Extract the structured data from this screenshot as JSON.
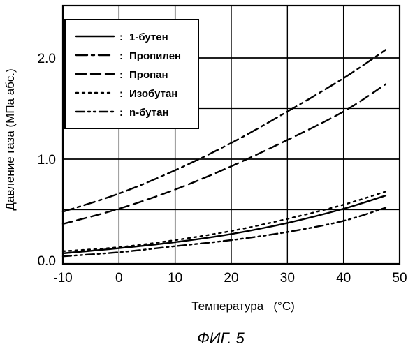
{
  "chart_data": {
    "type": "line",
    "xlabel": "Температура   (°C)",
    "ylabel": "Давление газа (МПа абс.)",
    "caption": "ФИГ. 5",
    "xlim": [
      -10,
      50
    ],
    "ylim": [
      0,
      2.4
    ],
    "x_ticks": [
      "-10",
      "0",
      "10",
      "20",
      "30",
      "40",
      "50"
    ],
    "y_ticks": [
      "0.0",
      "1.0",
      "2.0"
    ],
    "grid": true,
    "legend_position": "top-left",
    "x": [
      -10,
      0,
      10,
      20,
      30,
      40,
      47.5
    ],
    "series": [
      {
        "name": "1-бутен",
        "dash": "solid",
        "values": [
          0.07,
          0.12,
          0.18,
          0.26,
          0.37,
          0.51,
          0.64
        ]
      },
      {
        "name": "Пропилен",
        "dash": "dashdot",
        "values": [
          0.48,
          0.66,
          0.89,
          1.16,
          1.47,
          1.8,
          2.08
        ]
      },
      {
        "name": "Пропан",
        "dash": "dash",
        "values": [
          0.36,
          0.51,
          0.7,
          0.93,
          1.19,
          1.47,
          1.74
        ]
      },
      {
        "name": "Изобутан",
        "dash": "dot",
        "values": [
          0.09,
          0.13,
          0.2,
          0.29,
          0.41,
          0.55,
          0.68
        ]
      },
      {
        "name": "n-бутан",
        "dash": "dashdotdot",
        "values": [
          0.04,
          0.08,
          0.14,
          0.2,
          0.28,
          0.39,
          0.52
        ]
      }
    ]
  }
}
